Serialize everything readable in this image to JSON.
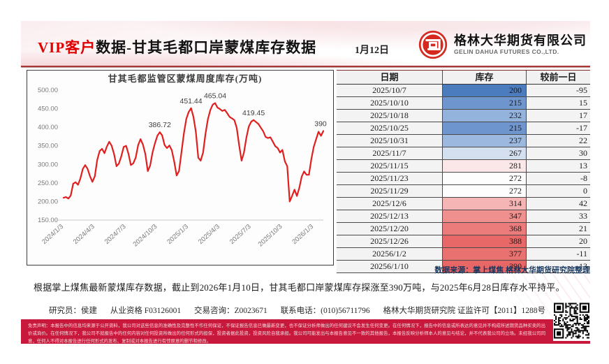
{
  "header": {
    "title_highlight": "VIP客户",
    "title_rest": "数据-甘其毛都口岸蒙煤库存数据",
    "date": "1月12日",
    "company_cn": "格林大华期货有限公司",
    "company_en": "GELIN DAHUA FUTURES CO.,LTD."
  },
  "chart_data": {
    "type": "line",
    "title": "甘其毛都监管区蒙煤周度库存(万吨)",
    "ylabel": "",
    "xlabel": "",
    "ylim": [
      150,
      500
    ],
    "grid": false,
    "legend_position": "none",
    "line_color": "#e01f1f",
    "y_ticks": [
      "500.00",
      "450.00",
      "400.00",
      "350.00",
      "300.00",
      "250.00",
      "200.00",
      "150.00"
    ],
    "x_ticks": [
      "2024/1/3",
      "2024/4/3",
      "2024/7/3",
      "2024/10/3",
      "2025/1/3",
      "2025/4/3",
      "2025/7/3",
      "2025/10/3",
      "2026/1/3"
    ],
    "x_tick_indices": [
      0,
      13,
      26,
      39,
      52,
      65,
      78,
      91,
      104
    ],
    "series": [
      {
        "name": "蒙煤周度库存",
        "values": [
          210,
          212,
          208,
          216,
          248,
          252,
          245,
          262,
          288,
          298,
          288,
          268,
          253,
          268,
          312,
          336,
          342,
          330,
          348,
          361,
          350,
          328,
          295,
          302,
          322,
          347,
          350,
          328,
          298,
          303,
          318,
          352,
          368,
          353,
          328,
          282,
          297,
          332,
          357,
          377,
          386.72,
          378,
          352,
          344,
          351,
          338,
          308,
          270,
          282,
          332,
          382,
          422,
          441,
          451.44,
          428,
          388,
          318,
          310,
          332,
          382,
          422,
          446,
          461,
          465.04,
          453,
          449,
          444,
          447,
          438,
          428,
          424,
          419,
          398,
          352,
          310,
          332,
          372,
          402,
          415,
          419.45,
          414,
          409,
          399,
          389,
          374,
          371,
          373,
          361,
          349,
          344,
          332,
          339,
          308,
          295,
          200,
          215,
          232,
          215,
          237,
          267,
          281,
          272,
          272,
          314,
          347,
          368,
          388,
          377,
          390
        ]
      }
    ],
    "annotations": [
      {
        "index": 40,
        "label": "386.72"
      },
      {
        "index": 53,
        "label": "451.44"
      },
      {
        "index": 63,
        "label": "465.04"
      },
      {
        "index": 79,
        "label": "419.45"
      },
      {
        "index": 108,
        "label": "390"
      }
    ]
  },
  "table": {
    "headers": [
      "日期",
      "库存",
      "较前一日"
    ],
    "rows": [
      {
        "date": "2025/10/7",
        "inventory": "200",
        "diff": "-95",
        "color": "#4a7cbe"
      },
      {
        "date": "2025/10/10",
        "inventory": "215",
        "diff": "15",
        "color": "#6e95cd"
      },
      {
        "date": "2025/10/18",
        "inventory": "232",
        "diff": "17",
        "color": "#94b3dc"
      },
      {
        "date": "2025/10/25",
        "inventory": "215",
        "diff": "-17",
        "color": "#6e95cd"
      },
      {
        "date": "2025/10/31",
        "inventory": "237",
        "diff": "22",
        "color": "#9cb8df"
      },
      {
        "date": "2025/11/7",
        "inventory": "267",
        "diff": "30",
        "color": "#d4dff0"
      },
      {
        "date": "2025/11/15",
        "inventory": "281",
        "diff": "13",
        "color": "#fbe7e7"
      },
      {
        "date": "2025/11/23",
        "inventory": "272",
        "diff": "-8",
        "color": "#fdfdfe"
      },
      {
        "date": "2025/11/29",
        "inventory": "272",
        "diff": "0",
        "color": "#fdfdfe"
      },
      {
        "date": "2025/12/6",
        "inventory": "314",
        "diff": "42",
        "color": "#f5b5b4"
      },
      {
        "date": "2025/12/13",
        "inventory": "347",
        "diff": "33",
        "color": "#ef8f8e"
      },
      {
        "date": "2025/12/20",
        "inventory": "368",
        "diff": "21",
        "color": "#eb7c7b"
      },
      {
        "date": "2025/12/26",
        "inventory": "388",
        "diff": "20",
        "color": "#e76867"
      },
      {
        "date": "20256/1/2",
        "inventory": "377",
        "diff": "-11",
        "color": "#e97271"
      },
      {
        "date": "20256/1/10",
        "inventory": "390",
        "diff": "13",
        "color": "#e76666"
      }
    ],
    "source_note": "数据来源：掌上煤焦  格林大华期货研究院整理"
  },
  "summary": "根据掌上煤焦最新蒙煤库存数据，截止到2026年1月10日，甘其毛都口岸蒙煤库存探涨至390万吨，与2025年6月28日库存水平持平。",
  "footer": {
    "researcher": "研究员：侯建",
    "qualification": "从业资格 F03126001",
    "consulting": "交易咨询：Z0023671",
    "phone": "联系电话：(010)56711796",
    "institute": "格林大华期货研究院  证监许可【2011】1288号"
  },
  "disclaimer": "免责声明：本报告中的信息均来源于公开资料，我公司对这些信息的准确性及完整性不作任何保证，不保证报告信息已做最新变更，也不保证分析师做出的任何建议不会发生任何变更。在任何情况下，报告中的信息或所表达的意见并不构成所述期货品种买卖的出价或询价。在任何情况下，我公司不就报告中的任何内容对任何投资所做出的任何形式的担保，投资者据此投资，投资风险自我承担。我公司可能发出与本报告意见不一致的其他报告，本报告反映分析师本人的意见与结论，并不代表我公司的立场。未经我公司同意，任何人不得对本报告进行任何形式的发布、复制或对本报告进行有悖原意的删节和修改。",
  "colors": {
    "accent_red": "#e00000",
    "line_red": "#e01f1f",
    "rule_red": "#a83737",
    "disclaimer_bg": "#c8193c",
    "source_navy": "#17375e",
    "logo_red": "#d5281e"
  }
}
